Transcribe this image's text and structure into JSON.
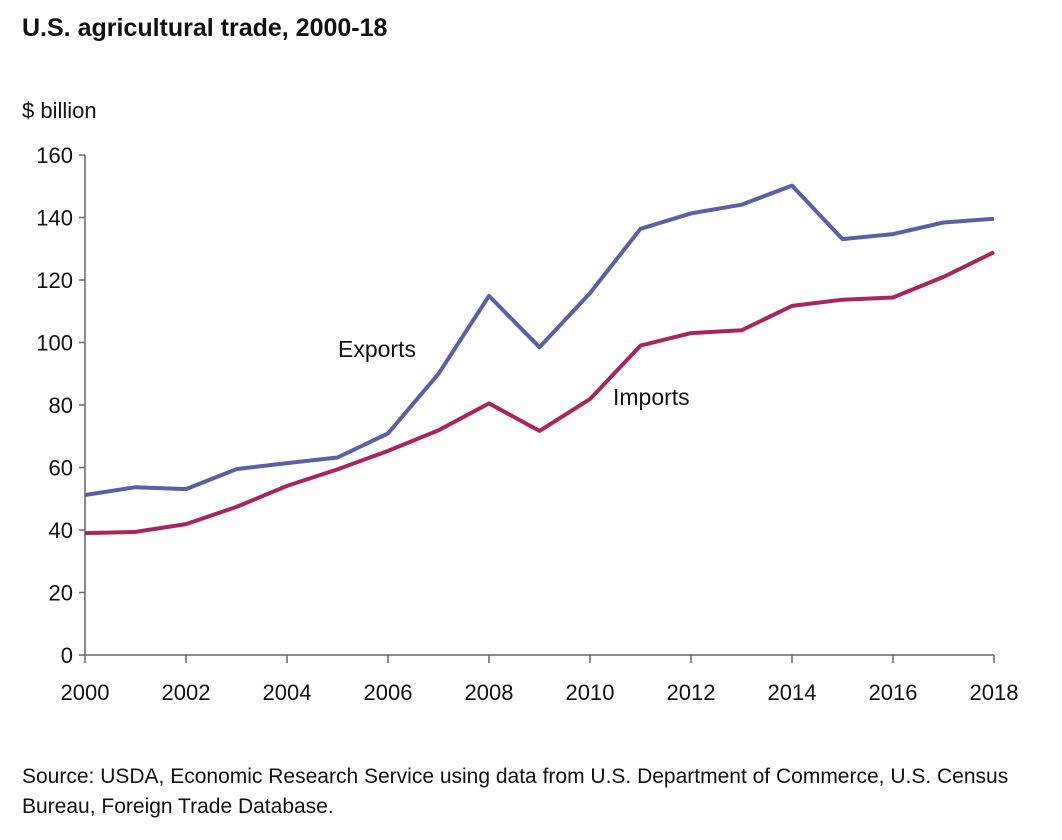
{
  "chart_data": {
    "type": "line",
    "title": "U.S. agricultural trade, 2000-18",
    "ylabel": "$ billion",
    "xlabel": "",
    "x": [
      2000,
      2001,
      2002,
      2003,
      2004,
      2005,
      2006,
      2007,
      2008,
      2009,
      2010,
      2011,
      2012,
      2013,
      2014,
      2015,
      2016,
      2017,
      2018
    ],
    "xticks": [
      "2000",
      "2002",
      "2004",
      "2006",
      "2008",
      "2010",
      "2012",
      "2014",
      "2016",
      "2018"
    ],
    "yticks": [
      "0",
      "20",
      "40",
      "60",
      "80",
      "100",
      "120",
      "140",
      "160"
    ],
    "ylim": [
      0,
      160
    ],
    "xlim": [
      2000,
      2018
    ],
    "grid": false,
    "series": [
      {
        "name": "Exports",
        "color": "#5a5fa8",
        "values": [
          51.2,
          53.7,
          53.1,
          59.5,
          61.4,
          63.2,
          70.9,
          90.0,
          114.9,
          98.5,
          115.8,
          136.4,
          141.3,
          144.1,
          150.2,
          133.1,
          134.7,
          138.4,
          139.6
        ]
      },
      {
        "name": "Imports",
        "color": "#a8255f",
        "values": [
          39.0,
          39.4,
          41.9,
          47.4,
          54.1,
          59.4,
          65.3,
          71.9,
          80.5,
          71.7,
          81.9,
          99.0,
          103.0,
          103.9,
          111.7,
          113.7,
          114.4,
          121.0,
          128.9
        ]
      }
    ],
    "source": "Source: USDA, Economic Research Service using data from U.S. Department of Commerce, U.S. Census Bureau, Foreign Trade Database."
  }
}
